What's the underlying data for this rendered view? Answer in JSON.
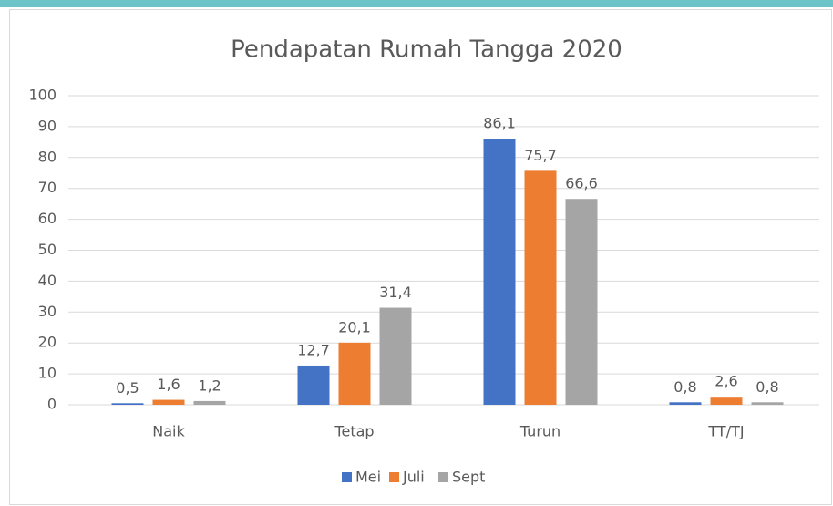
{
  "chart_data": {
    "type": "bar",
    "title": "Pendapatan Rumah Tangga 2020",
    "categories": [
      "Naik",
      "Tetap",
      "Turun",
      "TT/TJ"
    ],
    "series": [
      {
        "name": "Mei",
        "color": "#4472c4",
        "values": [
          0.5,
          12.7,
          86.1,
          0.8
        ],
        "value_labels": [
          "0,5",
          "12,7",
          "86,1",
          "0,8"
        ]
      },
      {
        "name": "Juli",
        "color": "#ed7d31",
        "values": [
          1.6,
          20.1,
          75.7,
          2.6
        ],
        "value_labels": [
          "1,6",
          "20,1",
          "75,7",
          "2,6"
        ]
      },
      {
        "name": "Sept",
        "color": "#a5a5a5",
        "values": [
          1.2,
          31.4,
          66.6,
          0.8
        ],
        "value_labels": [
          "1,2",
          "31,4",
          "66,6",
          "0,8"
        ]
      }
    ],
    "ylim": [
      0,
      100
    ],
    "yticks": [
      0,
      10,
      20,
      30,
      40,
      50,
      60,
      70,
      80,
      90,
      100
    ],
    "grid": true,
    "legend": "bottom"
  }
}
